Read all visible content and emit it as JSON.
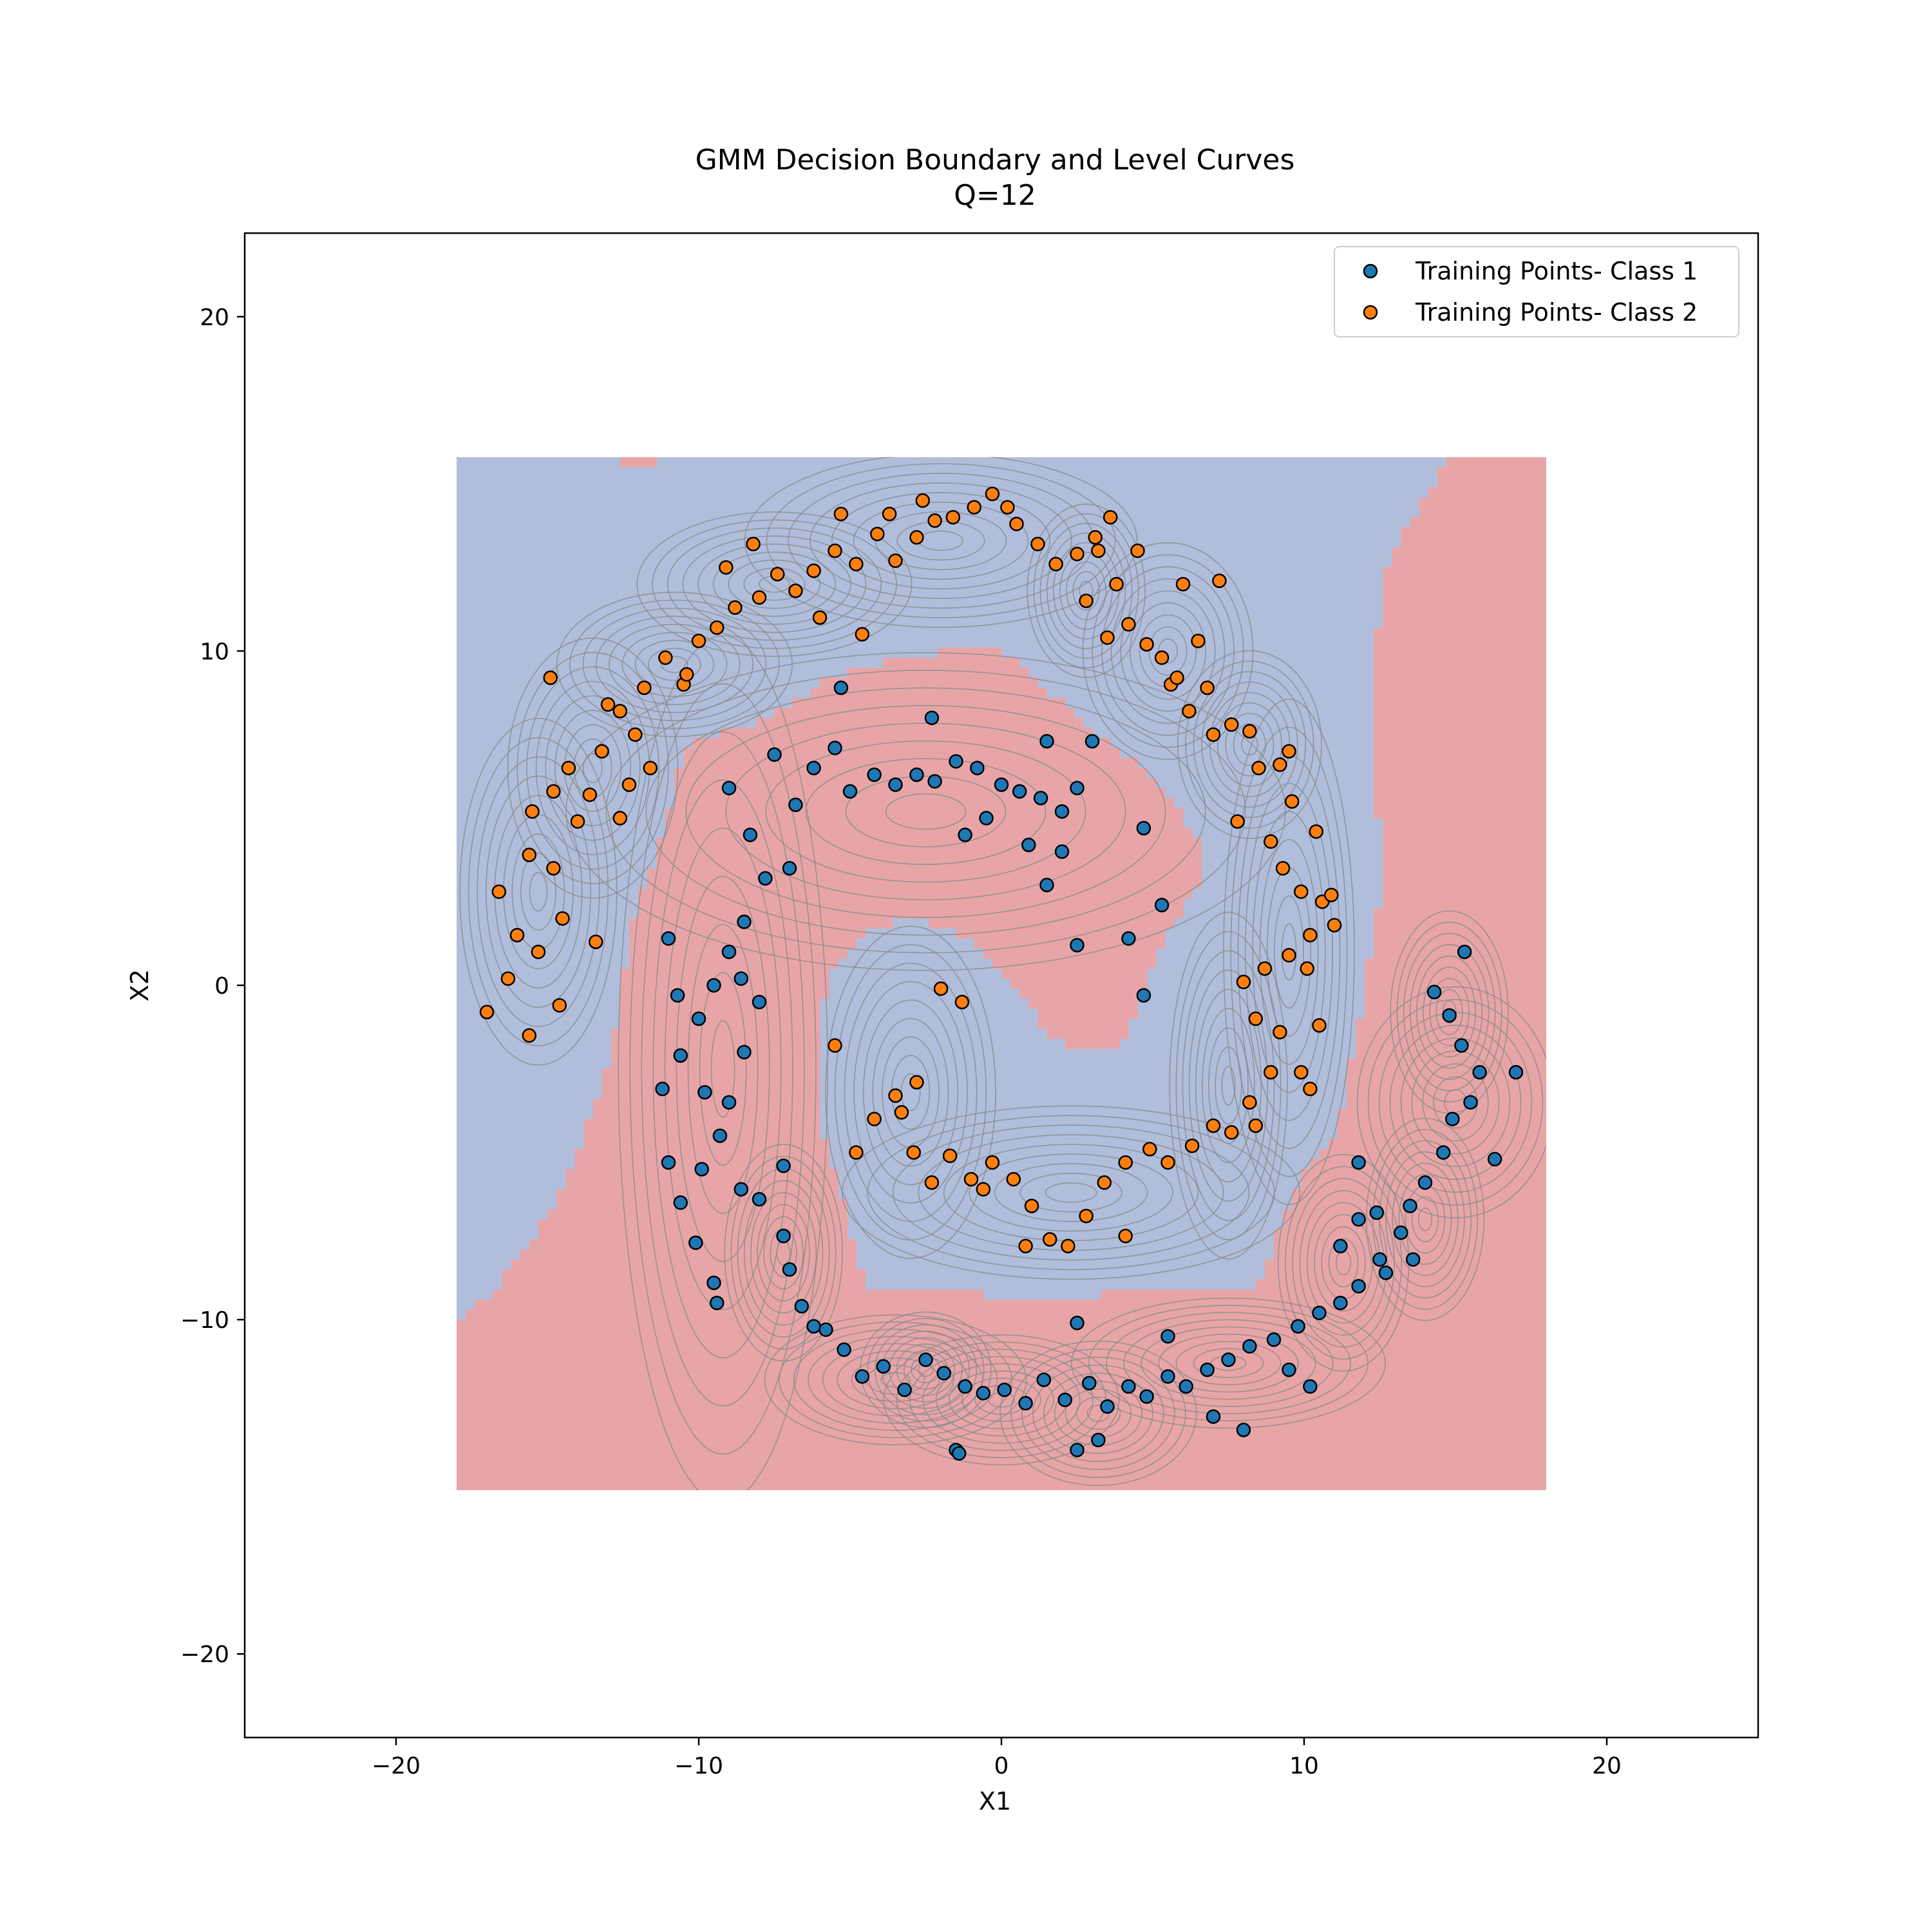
{
  "chart_data": {
    "type": "scatter",
    "title": "GMM Decision Boundary and Level Curves",
    "subtitle": "Q=12",
    "xlabel": "X1",
    "ylabel": "X2",
    "xlim": [
      -25,
      25
    ],
    "ylim": [
      -22.5,
      22.5
    ],
    "xticks": [
      -20,
      -10,
      0,
      10,
      20
    ],
    "yticks": [
      -20,
      -10,
      0,
      10,
      20
    ],
    "xtick_labels": [
      "−20",
      "−10",
      "0",
      "10",
      "20"
    ],
    "ytick_labels": [
      "−20",
      "−10",
      "0",
      "10",
      "20"
    ],
    "grid": false,
    "legend_position": "top-right",
    "decision_region": {
      "x_range": [
        -18,
        18
      ],
      "y_range": [
        -15.1,
        15.8
      ],
      "class1_region_color": "#b0bedc",
      "class2_region_color": "#e8a5a8"
    },
    "series": [
      {
        "name": "Training Points- Class 1",
        "color": "#1f77b4",
        "points": [
          [
            -9.0,
            5.9
          ],
          [
            -8.3,
            4.5
          ],
          [
            -7.5,
            6.9
          ],
          [
            -6.8,
            5.4
          ],
          [
            -6.2,
            6.5
          ],
          [
            -5.5,
            7.1
          ],
          [
            -5.0,
            5.8
          ],
          [
            -4.2,
            6.3
          ],
          [
            -3.5,
            6.0
          ],
          [
            -2.8,
            6.3
          ],
          [
            -2.2,
            6.1
          ],
          [
            -1.5,
            6.7
          ],
          [
            -0.8,
            6.5
          ],
          [
            0.0,
            6.0
          ],
          [
            0.6,
            5.8
          ],
          [
            1.3,
            5.6
          ],
          [
            2.0,
            5.2
          ],
          [
            2.5,
            5.9
          ],
          [
            3.0,
            7.3
          ],
          [
            1.5,
            7.3
          ],
          [
            2.0,
            4.0
          ],
          [
            1.5,
            3.0
          ],
          [
            -1.2,
            4.5
          ],
          [
            -0.5,
            5.0
          ],
          [
            0.9,
            4.2
          ],
          [
            -5.3,
            8.9
          ],
          [
            -2.3,
            8.0
          ],
          [
            4.7,
            4.7
          ],
          [
            5.3,
            2.4
          ],
          [
            4.2,
            1.4
          ],
          [
            2.5,
            1.2
          ],
          [
            4.7,
            -0.3
          ],
          [
            -7.0,
            3.5
          ],
          [
            -7.8,
            3.2
          ],
          [
            -8.5,
            1.9
          ],
          [
            -9.0,
            1.0
          ],
          [
            -9.5,
            0.0
          ],
          [
            -10.0,
            -1.0
          ],
          [
            -10.6,
            -2.1
          ],
          [
            -9.8,
            -3.2
          ],
          [
            -9.0,
            -3.5
          ],
          [
            -8.5,
            -2.0
          ],
          [
            -8.0,
            -0.5
          ],
          [
            -8.6,
            0.2
          ],
          [
            -9.3,
            -4.5
          ],
          [
            -9.9,
            -5.5
          ],
          [
            -10.6,
            -6.5
          ],
          [
            -10.1,
            -7.7
          ],
          [
            -9.5,
            -8.9
          ],
          [
            -9.4,
            -9.5
          ],
          [
            -8.6,
            -6.1
          ],
          [
            -8.0,
            -6.4
          ],
          [
            -7.2,
            -7.5
          ],
          [
            -7.2,
            -5.4
          ],
          [
            -7.0,
            -8.5
          ],
          [
            -6.6,
            -9.6
          ],
          [
            -5.8,
            -10.3
          ],
          [
            -5.2,
            -10.9
          ],
          [
            -4.6,
            -11.7
          ],
          [
            -3.9,
            -11.4
          ],
          [
            -3.2,
            -12.1
          ],
          [
            -2.5,
            -11.2
          ],
          [
            -1.9,
            -11.6
          ],
          [
            -1.2,
            -12.0
          ],
          [
            -0.6,
            -12.2
          ],
          [
            0.1,
            -12.1
          ],
          [
            0.8,
            -12.5
          ],
          [
            1.4,
            -11.8
          ],
          [
            2.1,
            -12.4
          ],
          [
            2.9,
            -11.9
          ],
          [
            3.5,
            -12.6
          ],
          [
            4.2,
            -12.0
          ],
          [
            4.8,
            -12.3
          ],
          [
            5.5,
            -11.7
          ],
          [
            6.1,
            -12.0
          ],
          [
            6.8,
            -11.5
          ],
          [
            7.5,
            -11.2
          ],
          [
            8.2,
            -10.8
          ],
          [
            9.0,
            -10.6
          ],
          [
            9.8,
            -10.2
          ],
          [
            10.5,
            -9.8
          ],
          [
            11.2,
            -9.5
          ],
          [
            11.8,
            -9.0
          ],
          [
            12.5,
            -8.2
          ],
          [
            11.2,
            -7.8
          ],
          [
            11.8,
            -7.0
          ],
          [
            12.4,
            -6.8
          ],
          [
            13.2,
            -7.4
          ],
          [
            13.5,
            -6.6
          ],
          [
            14.0,
            -5.9
          ],
          [
            14.6,
            -5.0
          ],
          [
            14.9,
            -4.0
          ],
          [
            15.5,
            -3.5
          ],
          [
            15.8,
            -2.6
          ],
          [
            15.2,
            -1.8
          ],
          [
            14.8,
            -0.9
          ],
          [
            14.3,
            -0.2
          ],
          [
            15.3,
            1.0
          ],
          [
            16.3,
            -5.2
          ],
          [
            17.0,
            -2.6
          ],
          [
            12.7,
            -8.6
          ],
          [
            13.6,
            -8.2
          ],
          [
            10.2,
            -12.0
          ],
          [
            9.5,
            -11.5
          ],
          [
            8.0,
            -13.3
          ],
          [
            7.0,
            -12.9
          ],
          [
            3.2,
            -13.6
          ],
          [
            2.5,
            -13.9
          ],
          [
            -1.5,
            -13.9
          ],
          [
            -1.4,
            -14.0
          ],
          [
            -6.2,
            -10.2
          ],
          [
            2.5,
            -10.1
          ],
          [
            5.5,
            -10.5
          ],
          [
            11.8,
            -5.3
          ],
          [
            -11.0,
            1.4
          ],
          [
            -10.7,
            -0.3
          ],
          [
            -11.2,
            -3.1
          ],
          [
            -11.0,
            -5.3
          ]
        ]
      },
      {
        "name": "Training Points- Class 2",
        "color": "#ff7f0e",
        "points": [
          [
            -15.6,
            3.9
          ],
          [
            -16.0,
            1.5
          ],
          [
            -16.6,
            2.8
          ],
          [
            -15.3,
            1.0
          ],
          [
            -14.8,
            3.5
          ],
          [
            -14.5,
            2.0
          ],
          [
            -15.5,
            5.2
          ],
          [
            -14.8,
            5.8
          ],
          [
            -14.0,
            4.9
          ],
          [
            -14.3,
            6.5
          ],
          [
            -13.6,
            5.7
          ],
          [
            -13.2,
            7.0
          ],
          [
            -12.6,
            8.2
          ],
          [
            -13.0,
            8.4
          ],
          [
            -12.1,
            7.5
          ],
          [
            -11.8,
            8.9
          ],
          [
            -11.1,
            9.8
          ],
          [
            -10.5,
            9.0
          ],
          [
            -10.0,
            10.3
          ],
          [
            -9.4,
            10.7
          ],
          [
            -8.8,
            11.3
          ],
          [
            -8.0,
            11.6
          ],
          [
            -7.4,
            12.3
          ],
          [
            -6.8,
            11.8
          ],
          [
            -6.2,
            12.4
          ],
          [
            -5.5,
            13.0
          ],
          [
            -4.8,
            12.6
          ],
          [
            -4.1,
            13.5
          ],
          [
            -3.5,
            12.7
          ],
          [
            -2.8,
            13.4
          ],
          [
            -2.2,
            13.9
          ],
          [
            -1.6,
            14.0
          ],
          [
            -0.9,
            14.3
          ],
          [
            -0.3,
            14.7
          ],
          [
            0.5,
            13.8
          ],
          [
            1.2,
            13.2
          ],
          [
            1.8,
            12.6
          ],
          [
            2.5,
            12.9
          ],
          [
            3.1,
            13.4
          ],
          [
            3.6,
            14.0
          ],
          [
            3.8,
            12.0
          ],
          [
            2.8,
            11.5
          ],
          [
            3.5,
            10.4
          ],
          [
            4.2,
            10.8
          ],
          [
            4.8,
            10.2
          ],
          [
            5.3,
            9.8
          ],
          [
            5.6,
            9.0
          ],
          [
            6.2,
            8.2
          ],
          [
            6.8,
            8.9
          ],
          [
            7.0,
            7.5
          ],
          [
            7.6,
            7.8
          ],
          [
            8.2,
            7.6
          ],
          [
            8.5,
            6.5
          ],
          [
            9.2,
            6.6
          ],
          [
            9.6,
            5.5
          ],
          [
            7.8,
            4.9
          ],
          [
            8.9,
            4.3
          ],
          [
            9.3,
            3.5
          ],
          [
            9.9,
            2.8
          ],
          [
            10.6,
            2.5
          ],
          [
            10.2,
            1.5
          ],
          [
            9.5,
            0.9
          ],
          [
            8.7,
            0.5
          ],
          [
            8.0,
            0.1
          ],
          [
            8.4,
            -1.0
          ],
          [
            9.2,
            -1.4
          ],
          [
            9.9,
            -2.6
          ],
          [
            10.2,
            -3.1
          ],
          [
            8.9,
            -2.6
          ],
          [
            8.2,
            -3.5
          ],
          [
            7.6,
            -4.4
          ],
          [
            7.0,
            -4.2
          ],
          [
            6.3,
            -4.8
          ],
          [
            5.5,
            -5.3
          ],
          [
            4.9,
            -4.9
          ],
          [
            4.1,
            -5.3
          ],
          [
            3.4,
            -5.9
          ],
          [
            2.8,
            -6.9
          ],
          [
            2.2,
            -7.8
          ],
          [
            1.6,
            -7.6
          ],
          [
            1.0,
            -6.6
          ],
          [
            0.4,
            -5.8
          ],
          [
            -0.3,
            -5.3
          ],
          [
            -1.0,
            -5.8
          ],
          [
            -1.7,
            -5.1
          ],
          [
            -2.3,
            -5.9
          ],
          [
            -2.9,
            -5.0
          ],
          [
            -3.3,
            -3.8
          ],
          [
            -2.8,
            -2.9
          ],
          [
            -3.5,
            -3.3
          ],
          [
            -4.2,
            -4.0
          ],
          [
            -5.5,
            -1.8
          ],
          [
            -4.8,
            -5.0
          ],
          [
            -1.3,
            -0.5
          ],
          [
            -2.0,
            -0.1
          ],
          [
            -15.6,
            -1.5
          ],
          [
            -16.3,
            0.2
          ],
          [
            -17.0,
            -0.8
          ],
          [
            -14.6,
            -0.6
          ],
          [
            -12.3,
            6.0
          ],
          [
            -13.4,
            1.3
          ],
          [
            -14.9,
            9.2
          ],
          [
            -12.6,
            5.0
          ],
          [
            -11.6,
            6.5
          ],
          [
            -10.4,
            9.3
          ],
          [
            -9.1,
            12.5
          ],
          [
            -8.2,
            13.2
          ],
          [
            -5.3,
            14.1
          ],
          [
            -3.7,
            14.1
          ],
          [
            -2.6,
            14.5
          ],
          [
            0.2,
            14.3
          ],
          [
            -4.6,
            10.5
          ],
          [
            -6.0,
            11.0
          ],
          [
            3.2,
            13.0
          ],
          [
            4.5,
            13.0
          ],
          [
            6.0,
            12.0
          ],
          [
            7.2,
            12.1
          ],
          [
            6.5,
            10.3
          ],
          [
            5.8,
            9.2
          ],
          [
            9.5,
            7.0
          ],
          [
            10.4,
            4.6
          ],
          [
            10.9,
            2.7
          ],
          [
            11.0,
            1.8
          ],
          [
            10.1,
            0.5
          ],
          [
            10.5,
            -1.2
          ],
          [
            8.4,
            -4.2
          ],
          [
            4.1,
            -7.5
          ],
          [
            0.8,
            -7.8
          ],
          [
            -0.6,
            -6.1
          ]
        ]
      }
    ],
    "gmm_components": [
      {
        "class": 1,
        "mean": [
          -2.5,
          5.2
        ],
        "sd": [
          5.5,
          2.2
        ]
      },
      {
        "class": 1,
        "mean": [
          -9.2,
          -2.5
        ],
        "sd": [
          1.6,
          6.0
        ]
      },
      {
        "class": 1,
        "mean": [
          -7.2,
          -8.0
        ],
        "sd": [
          0.9,
          1.5
        ]
      },
      {
        "class": 1,
        "mean": [
          -3.5,
          -11.8
        ],
        "sd": [
          2.0,
          0.9
        ]
      },
      {
        "class": 1,
        "mean": [
          0.0,
          -12.4
        ],
        "sd": [
          1.8,
          0.9
        ]
      },
      {
        "class": 1,
        "mean": [
          3.2,
          -12.8
        ],
        "sd": [
          1.5,
          1.0
        ]
      },
      {
        "class": 1,
        "mean": [
          7.5,
          -11.3
        ],
        "sd": [
          2.4,
          0.9
        ]
      },
      {
        "class": 1,
        "mean": [
          11.3,
          -8.3
        ],
        "sd": [
          1.0,
          1.5
        ]
      },
      {
        "class": 1,
        "mean": [
          14.0,
          -7.0
        ],
        "sd": [
          0.9,
          1.4
        ]
      },
      {
        "class": 1,
        "mean": [
          15.0,
          -3.5
        ],
        "sd": [
          1.5,
          1.6
        ]
      },
      {
        "class": 1,
        "mean": [
          14.8,
          -0.8
        ],
        "sd": [
          0.9,
          1.4
        ]
      },
      {
        "class": 1,
        "mean": [
          -2.5,
          -11.5
        ],
        "sd": [
          1.0,
          0.8
        ]
      },
      {
        "class": 2,
        "mean": [
          -15.3,
          2.8
        ],
        "sd": [
          1.2,
          2.4
        ]
      },
      {
        "class": 2,
        "mean": [
          -13.5,
          6.5
        ],
        "sd": [
          1.3,
          1.8
        ]
      },
      {
        "class": 2,
        "mean": [
          -10.8,
          9.6
        ],
        "sd": [
          1.8,
          1.0
        ]
      },
      {
        "class": 2,
        "mean": [
          -7.5,
          12.0
        ],
        "sd": [
          2.1,
          1.0
        ]
      },
      {
        "class": 2,
        "mean": [
          -2.0,
          13.3
        ],
        "sd": [
          3.0,
          1.2
        ]
      },
      {
        "class": 2,
        "mean": [
          2.8,
          11.8
        ],
        "sd": [
          0.9,
          1.2
        ]
      },
      {
        "class": 2,
        "mean": [
          5.5,
          10.0
        ],
        "sd": [
          1.3,
          1.5
        ]
      },
      {
        "class": 2,
        "mean": [
          8.2,
          7.2
        ],
        "sd": [
          1.1,
          1.3
        ]
      },
      {
        "class": 2,
        "mean": [
          9.5,
          1.0
        ],
        "sd": [
          1.0,
          3.5
        ]
      },
      {
        "class": 2,
        "mean": [
          7.5,
          -3.0
        ],
        "sd": [
          0.9,
          2.4
        ]
      },
      {
        "class": 2,
        "mean": [
          2.3,
          -6.2
        ],
        "sd": [
          3.5,
          1.2
        ]
      },
      {
        "class": 2,
        "mean": [
          -3.0,
          -3.2
        ],
        "sd": [
          1.3,
          2.3
        ]
      }
    ]
  }
}
